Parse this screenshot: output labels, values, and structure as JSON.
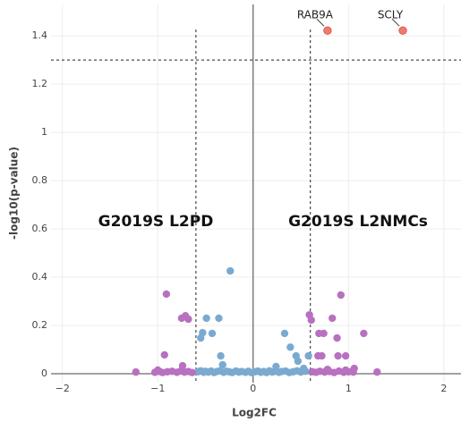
{
  "chart_data": {
    "type": "scatter",
    "x_label": "Log2FC",
    "y_label": "-log10(p-value)",
    "xlim": [
      -2.12,
      2.18
    ],
    "ylim": [
      -0.037,
      1.53
    ],
    "xticks": [
      {
        "value": -2,
        "label": "−2"
      },
      {
        "value": -1,
        "label": "−1"
      },
      0,
      1,
      2
    ],
    "yticks": [
      0,
      0.2,
      0.4,
      0.6,
      0.8,
      1,
      1.2,
      1.4
    ],
    "grid": true,
    "threshold_y": 1.3,
    "threshold_x": [
      -0.6,
      0.6
    ],
    "annotations": [
      "G2019S L2PD",
      "G2019S L2NMCs"
    ],
    "series": [
      {
        "color": "#7aaad0",
        "x": [
          -0.24,
          -0.49,
          -0.36,
          -0.53,
          -0.43,
          -0.55,
          -0.34,
          -0.32,
          0.33,
          0.39,
          0.45,
          0.47,
          0.58,
          0.24,
          0.53,
          -0.58,
          -0.55,
          -0.52,
          -0.5,
          -0.47,
          -0.44,
          -0.41,
          -0.38,
          -0.35,
          -0.31,
          -0.28,
          -0.25,
          -0.22,
          -0.18,
          -0.15,
          -0.12,
          -0.08,
          -0.05,
          -0.02,
          0.02,
          0.05,
          0.08,
          0.11,
          0.14,
          0.17,
          0.2,
          0.23,
          0.27,
          0.3,
          0.34,
          0.38,
          0.42,
          0.46,
          0.5,
          0.55
        ],
        "values": [
          0.426,
          0.23,
          0.23,
          0.17,
          0.167,
          0.148,
          0.074,
          0.037,
          0.167,
          0.11,
          0.074,
          0.052,
          0.074,
          0.03,
          0.022,
          0.008,
          0.012,
          0.006,
          0.01,
          0.007,
          0.011,
          0.005,
          0.009,
          0.012,
          0.006,
          0.01,
          0.008,
          0.005,
          0.011,
          0.007,
          0.009,
          0.006,
          0.01,
          0.005,
          0.008,
          0.011,
          0.006,
          0.009,
          0.005,
          0.012,
          0.007,
          0.01,
          0.006,
          0.009,
          0.011,
          0.005,
          0.008,
          0.012,
          0.007,
          0.01
        ]
      },
      {
        "color": "#b870c0",
        "x": [
          -0.91,
          -0.71,
          -0.75,
          -0.68,
          -0.93,
          -0.74,
          -1.23,
          -1.0,
          0.59,
          0.61,
          0.83,
          0.92,
          0.69,
          0.74,
          0.88,
          0.89,
          0.68,
          0.72,
          0.97,
          1.16,
          1.06,
          1.3,
          0.97,
          0.78,
          -1.03,
          -0.98,
          -0.95,
          -0.9,
          -0.85,
          -0.8,
          -0.76,
          -0.72,
          -0.68,
          -0.64,
          0.62,
          0.66,
          0.7,
          0.75,
          0.8,
          0.85,
          0.9,
          0.95,
          1.0,
          1.05
        ],
        "values": [
          0.33,
          0.24,
          0.23,
          0.226,
          0.078,
          0.033,
          0.007,
          0.015,
          0.244,
          0.222,
          0.23,
          0.326,
          0.167,
          0.167,
          0.148,
          0.074,
          0.074,
          0.074,
          0.074,
          0.167,
          0.022,
          0.007,
          0.015,
          0.018,
          0.006,
          0.009,
          0.005,
          0.008,
          0.01,
          0.006,
          0.011,
          0.007,
          0.009,
          0.005,
          0.008,
          0.006,
          0.01,
          0.007,
          0.009,
          0.005,
          0.011,
          0.006,
          0.008,
          0.007
        ]
      },
      {
        "color": "#ef7b6e",
        "x": [
          0.78,
          1.57
        ],
        "values": [
          1.422,
          1.422
        ],
        "labels": [
          "RAB9A",
          "SCLY"
        ]
      }
    ]
  }
}
